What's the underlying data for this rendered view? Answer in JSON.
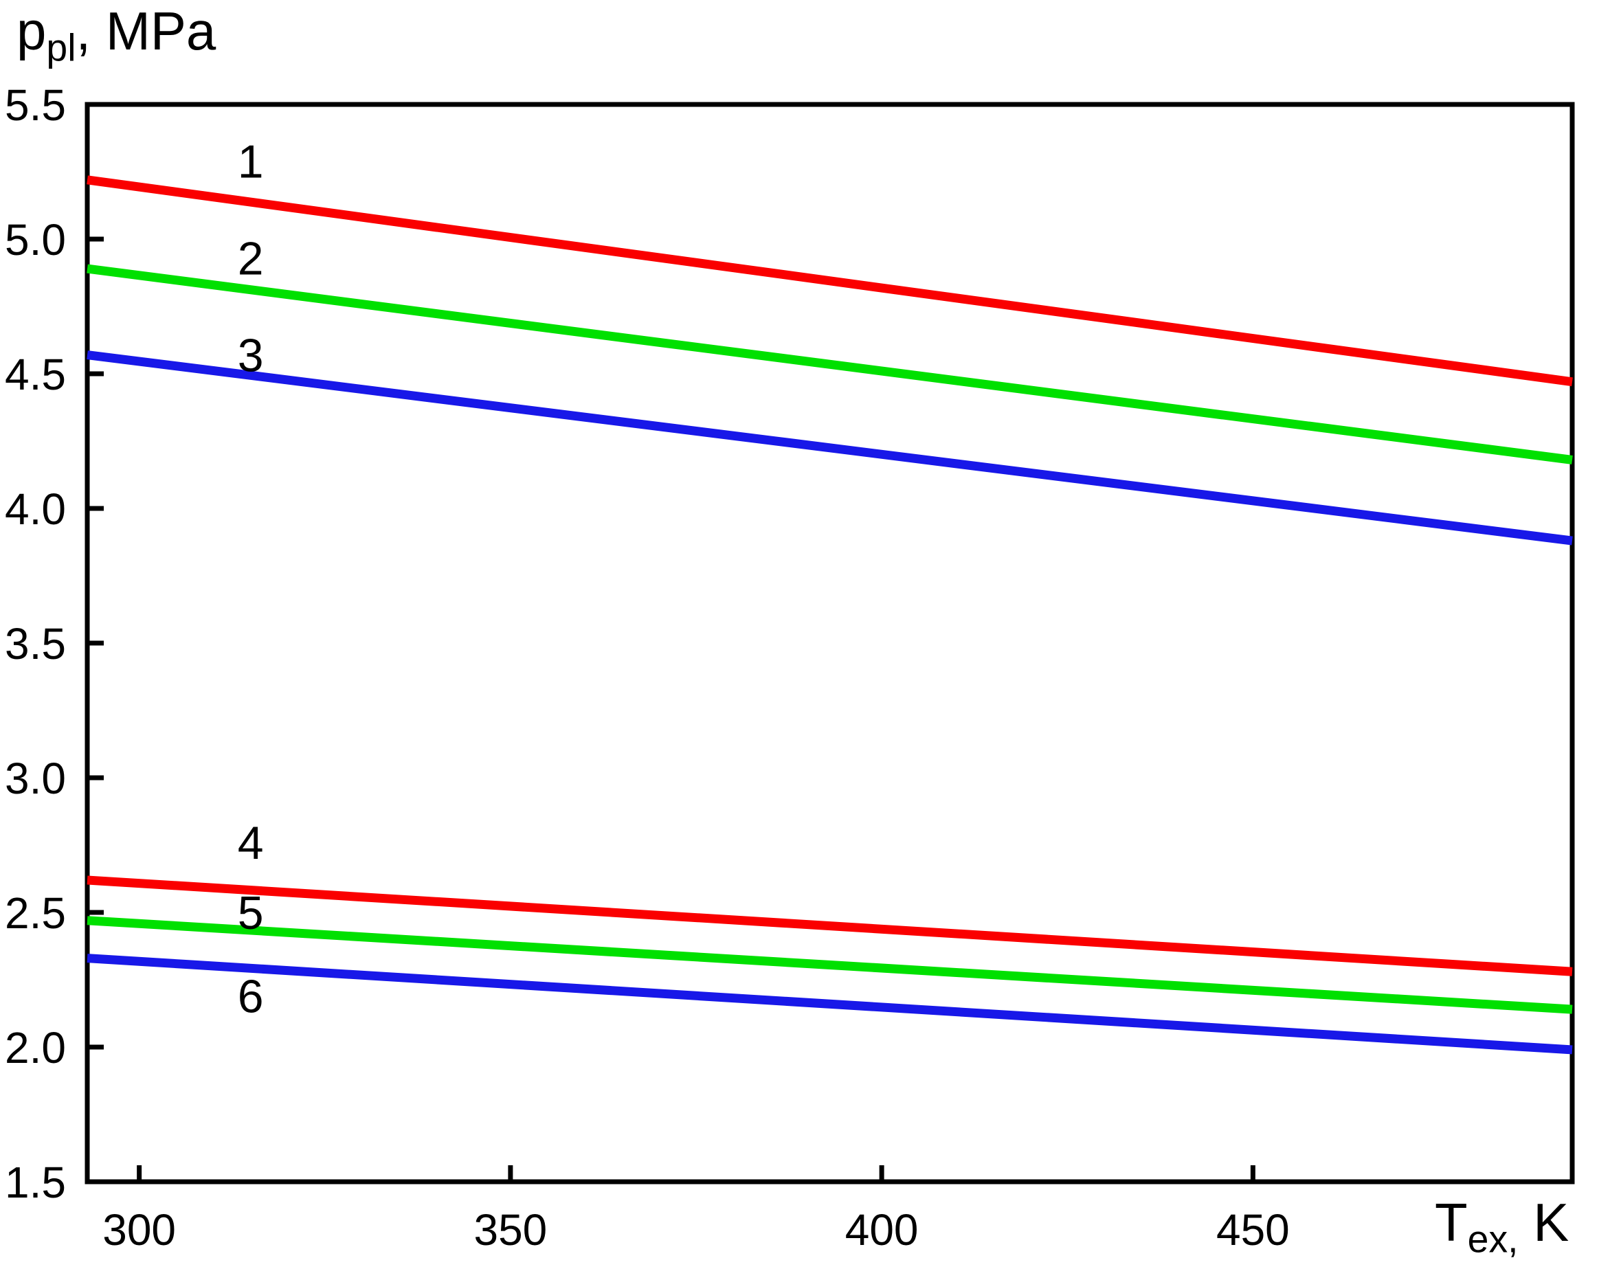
{
  "figure": {
    "background": "#ffffff",
    "axis_color": "#000000",
    "text_color": "#000000"
  },
  "chart_data": {
    "type": "line",
    "title": "",
    "xlabel": {
      "base": "T",
      "sub": "ex,",
      "suffix": " K"
    },
    "ylabel": {
      "base": "p",
      "sub": "pl",
      "suffix": ", MPa"
    },
    "xlim": [
      293,
      493
    ],
    "ylim": [
      1.5,
      5.5
    ],
    "x_ticks": [
      300,
      350,
      400,
      450
    ],
    "x_tick_labels": [
      "300",
      "350",
      "400",
      "450"
    ],
    "y_ticks": [
      1.5,
      2.0,
      2.5,
      3.0,
      3.5,
      4.0,
      4.5,
      5.0,
      5.5
    ],
    "y_tick_labels": [
      "1.5",
      "2.0",
      "2.5",
      "3.0",
      "3.5",
      "4.0",
      "4.5",
      "5.0",
      "5.5"
    ],
    "grid": false,
    "legend_position": "none",
    "series": [
      {
        "label": "1",
        "color": "#fa0000",
        "points": [
          [
            293,
            5.22
          ],
          [
            493,
            4.47
          ]
        ],
        "label_pos": [
          315,
          5.29
        ]
      },
      {
        "label": "2",
        "color": "#00e000",
        "points": [
          [
            293,
            4.89
          ],
          [
            493,
            4.18
          ]
        ],
        "label_pos": [
          315,
          4.93
        ]
      },
      {
        "label": "3",
        "color": "#1818e8",
        "points": [
          [
            293,
            4.57
          ],
          [
            493,
            3.88
          ]
        ],
        "label_pos": [
          315,
          4.57
        ]
      },
      {
        "label": "4",
        "color": "#fa0000",
        "points": [
          [
            293,
            2.62
          ],
          [
            493,
            2.28
          ]
        ],
        "label_pos": [
          315,
          2.76
        ]
      },
      {
        "label": "5",
        "color": "#00e000",
        "points": [
          [
            293,
            2.47
          ],
          [
            493,
            2.14
          ]
        ],
        "label_pos": [
          315,
          2.5
        ]
      },
      {
        "label": "6",
        "color": "#1818e8",
        "points": [
          [
            293,
            2.33
          ],
          [
            493,
            1.99
          ]
        ],
        "label_pos": [
          315,
          2.19
        ]
      }
    ]
  }
}
